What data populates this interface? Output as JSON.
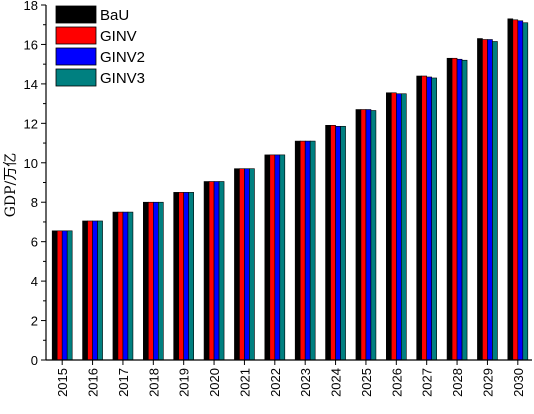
{
  "chart_data": {
    "type": "bar",
    "title": "",
    "xlabel": "",
    "ylabel": "GDP/万亿",
    "ylim": [
      0,
      18
    ],
    "yticks": [
      0,
      2,
      4,
      6,
      8,
      10,
      12,
      14,
      16,
      18
    ],
    "grid": false,
    "legend_position": "top-left",
    "categories": [
      "2015",
      "2016",
      "2017",
      "2018",
      "2019",
      "2020",
      "2021",
      "2022",
      "2023",
      "2024",
      "2025",
      "2026",
      "2027",
      "2028",
      "2029",
      "2030"
    ],
    "series": [
      {
        "name": "BaU",
        "color": "#000000",
        "values": [
          6.55,
          7.05,
          7.5,
          8.0,
          8.5,
          9.05,
          9.7,
          10.4,
          11.1,
          11.9,
          12.7,
          13.55,
          14.4,
          15.3,
          16.3,
          17.3
        ]
      },
      {
        "name": "GINV",
        "color": "#ff0000",
        "values": [
          6.55,
          7.05,
          7.5,
          8.0,
          8.5,
          9.05,
          9.7,
          10.4,
          11.1,
          11.9,
          12.7,
          13.55,
          14.4,
          15.3,
          16.25,
          17.25
        ]
      },
      {
        "name": "GINV2",
        "color": "#0000ff",
        "values": [
          6.55,
          7.05,
          7.5,
          8.0,
          8.5,
          9.05,
          9.7,
          10.4,
          11.1,
          11.85,
          12.7,
          13.5,
          14.35,
          15.25,
          16.25,
          17.2
        ]
      },
      {
        "name": "GINV3",
        "color": "#008080",
        "values": [
          6.55,
          7.05,
          7.5,
          8.0,
          8.5,
          9.05,
          9.7,
          10.4,
          11.1,
          11.85,
          12.65,
          13.5,
          14.3,
          15.2,
          16.15,
          17.1
        ]
      }
    ]
  }
}
